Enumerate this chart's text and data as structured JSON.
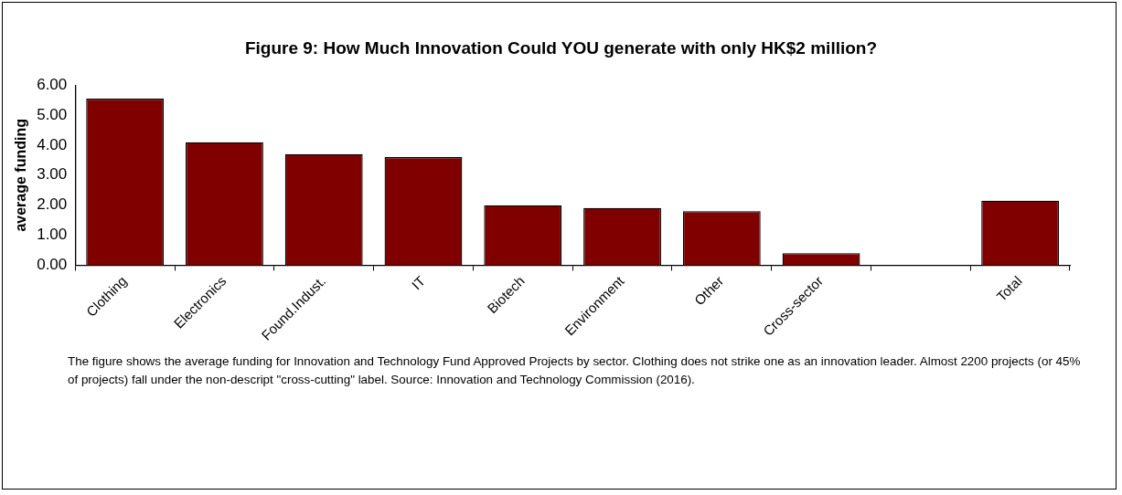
{
  "chart_data": {
    "type": "bar",
    "title": "Figure 9: How Much Innovation Could YOU generate with only HK$2 million?",
    "ylabel": "average funding",
    "categories": [
      "Clothing",
      "Electronics",
      "Found.Indust.",
      "IT",
      "Biotech",
      "Environment",
      "Other",
      "Cross-sector",
      null,
      "Total"
    ],
    "values": [
      5.55,
      4.1,
      3.7,
      3.6,
      2.0,
      1.91,
      1.8,
      0.4,
      null,
      2.15
    ],
    "color": "#800000",
    "ylim": [
      0,
      6
    ],
    "yticks": [
      {
        "value": 0,
        "label": "0.00"
      },
      {
        "value": 1,
        "label": "1.00"
      },
      {
        "value": 2,
        "label": "2.00"
      },
      {
        "value": 3,
        "label": "3.00"
      },
      {
        "value": 4,
        "label": "4.00"
      },
      {
        "value": 5,
        "label": "5.00"
      },
      {
        "value": 6,
        "label": "6.00"
      }
    ],
    "grid": false,
    "legend": false,
    "annotations": [
      "The figure shows the average funding for Innovation and Technology Fund Approved Projects by sector. Clothing does not strike one as an innovation leader. Almost 2200 projects (or 45% of projects) fall under the non-descript \"cross-cutting\" label. Source: Innovation and Technology Commission (2016)."
    ]
  }
}
